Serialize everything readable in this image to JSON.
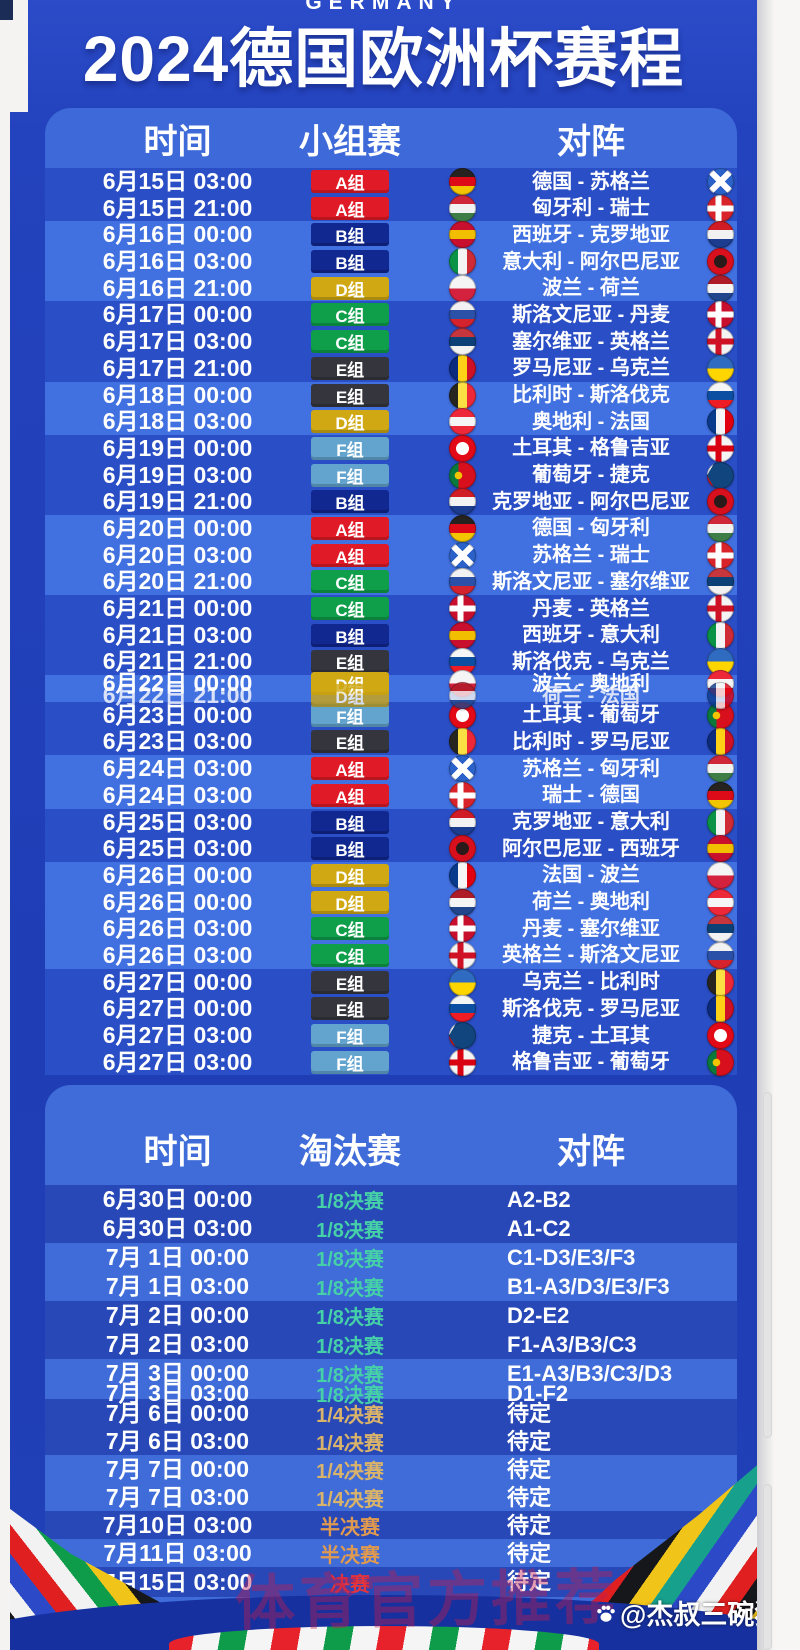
{
  "title": {
    "country": "GERMANY",
    "main": "2024德国欧洲杯赛程"
  },
  "colors": {
    "poster_blue": "#2342bd",
    "row_dark": "#2a4ec5",
    "row_light": "#4170e0",
    "header_band": "#3e6ad9",
    "ko_row_dark": "#2848b8",
    "ko_row_light": "#3f6cd9"
  },
  "group_stage": {
    "headers": {
      "time": "时间",
      "stage": "小组赛",
      "versus": "对阵"
    },
    "groups": {
      "A": {
        "label": "A组",
        "color": "#e11a27"
      },
      "B": {
        "label": "B组",
        "color": "#10288f"
      },
      "C": {
        "label": "C组",
        "color": "#0f9e49"
      },
      "D": {
        "label": "D组",
        "color": "#cfa813"
      },
      "E": {
        "label": "E组",
        "color": "#35353d"
      },
      "F": {
        "label": "F组",
        "color": "#63a4cf"
      }
    },
    "rows": [
      {
        "time": "6月15日 03:00",
        "group": "A",
        "home_flag": "de",
        "match": "德国 - 苏格兰",
        "away_flag": "sct",
        "shade": "a"
      },
      {
        "time": "6月15日 21:00",
        "group": "A",
        "home_flag": "hu",
        "match": "匈牙利 - 瑞士",
        "away_flag": "ch",
        "shade": "a"
      },
      {
        "time": "6月16日 00:00",
        "group": "B",
        "home_flag": "es",
        "match": "西班牙 - 克罗地亚",
        "away_flag": "hr",
        "shade": "b"
      },
      {
        "time": "6月16日 03:00",
        "group": "B",
        "home_flag": "it",
        "match": "意大利 - 阿尔巴尼亚",
        "away_flag": "al",
        "shade": "b"
      },
      {
        "time": "6月16日 21:00",
        "group": "D",
        "home_flag": "pl",
        "match": "波兰 - 荷兰",
        "away_flag": "nl",
        "shade": "b"
      },
      {
        "time": "6月17日 00:00",
        "group": "C",
        "home_flag": "si",
        "match": "斯洛文尼亚 - 丹麦",
        "away_flag": "dk",
        "shade": "a"
      },
      {
        "time": "6月17日 03:00",
        "group": "C",
        "home_flag": "rs",
        "match": "塞尔维亚 - 英格兰",
        "away_flag": "en",
        "shade": "a"
      },
      {
        "time": "6月17日 21:00",
        "group": "E",
        "home_flag": "ro",
        "match": "罗马尼亚 - 乌克兰",
        "away_flag": "ua",
        "shade": "a"
      },
      {
        "time": "6月18日 00:00",
        "group": "E",
        "home_flag": "be",
        "match": "比利时 - 斯洛伐克",
        "away_flag": "sk",
        "shade": "b"
      },
      {
        "time": "6月18日 03:00",
        "group": "D",
        "home_flag": "at",
        "match": "奥地利 - 法国",
        "away_flag": "fr",
        "shade": "b"
      },
      {
        "time": "6月19日 00:00",
        "group": "F",
        "home_flag": "tr",
        "match": "土耳其 - 格鲁吉亚",
        "away_flag": "ge",
        "shade": "a"
      },
      {
        "time": "6月19日 03:00",
        "group": "F",
        "home_flag": "pt",
        "match": "葡萄牙 - 捷克",
        "away_flag": "cz",
        "shade": "a"
      },
      {
        "time": "6月19日 21:00",
        "group": "B",
        "home_flag": "hr",
        "match": "克罗地亚 - 阿尔巴尼亚",
        "away_flag": "al",
        "shade": "a"
      },
      {
        "time": "6月20日 00:00",
        "group": "A",
        "home_flag": "de",
        "match": "德国 - 匈牙利",
        "away_flag": "hu",
        "shade": "b"
      },
      {
        "time": "6月20日 03:00",
        "group": "A",
        "home_flag": "sct",
        "match": "苏格兰 - 瑞士",
        "away_flag": "ch",
        "shade": "b"
      },
      {
        "time": "6月20日 21:00",
        "group": "C",
        "home_flag": "si",
        "match": "斯洛文尼亚 - 塞尔维亚",
        "away_flag": "rs",
        "shade": "b"
      },
      {
        "time": "6月21日 00:00",
        "group": "C",
        "home_flag": "dk",
        "match": "丹麦 - 英格兰",
        "away_flag": "en",
        "shade": "a"
      },
      {
        "time": "6月21日 03:00",
        "group": "B",
        "home_flag": "es",
        "match": "西班牙 - 意大利",
        "away_flag": "it",
        "shade": "a"
      },
      {
        "time": "6月21日 21:00",
        "group": "E",
        "home_flag": "sk",
        "match": "斯洛伐克 - 乌克兰",
        "away_flag": "ua",
        "shade": "a"
      },
      {
        "glitch": true,
        "shade": "b",
        "layers": [
          {
            "time": "6月22日 00:00",
            "group": "D",
            "home_flag": "pl",
            "match": "波兰 - 奥地利",
            "away_flag": "at"
          },
          {
            "time": "6月22日 21:00",
            "group": "D",
            "home_flag": "nl",
            "match": "荷兰 - 法国",
            "away_flag": "fr"
          }
        ]
      },
      {
        "time": "6月23日 00:00",
        "group": "F",
        "home_flag": "tr",
        "match": "土耳其 - 葡萄牙",
        "away_flag": "pt",
        "shade": "a"
      },
      {
        "time": "6月23日 03:00",
        "group": "E",
        "home_flag": "be",
        "match": "比利时 - 罗马尼亚",
        "away_flag": "ro",
        "shade": "a"
      },
      {
        "time": "6月24日 03:00",
        "group": "A",
        "home_flag": "sct",
        "match": "苏格兰 - 匈牙利",
        "away_flag": "hu",
        "shade": "b"
      },
      {
        "time": "6月24日 03:00",
        "group": "A",
        "home_flag": "ch",
        "match": "瑞士 - 德国",
        "away_flag": "de",
        "shade": "b"
      },
      {
        "time": "6月25日 03:00",
        "group": "B",
        "home_flag": "hr",
        "match": "克罗地亚 - 意大利",
        "away_flag": "it",
        "shade": "a"
      },
      {
        "time": "6月25日 03:00",
        "group": "B",
        "home_flag": "al",
        "match": "阿尔巴尼亚 - 西班牙",
        "away_flag": "es",
        "shade": "a"
      },
      {
        "time": "6月26日 00:00",
        "group": "D",
        "home_flag": "fr",
        "match": "法国 - 波兰",
        "away_flag": "pl",
        "shade": "b"
      },
      {
        "time": "6月26日 00:00",
        "group": "D",
        "home_flag": "nl",
        "match": "荷兰 - 奥地利",
        "away_flag": "at",
        "shade": "b"
      },
      {
        "time": "6月26日 03:00",
        "group": "C",
        "home_flag": "dk",
        "match": "丹麦 - 塞尔维亚",
        "away_flag": "rs",
        "shade": "b"
      },
      {
        "time": "6月26日 03:00",
        "group": "C",
        "home_flag": "en",
        "match": "英格兰 - 斯洛文尼亚",
        "away_flag": "si",
        "shade": "b"
      },
      {
        "time": "6月27日 00:00",
        "group": "E",
        "home_flag": "ua",
        "match": "乌克兰 - 比利时",
        "away_flag": "be",
        "shade": "a"
      },
      {
        "time": "6月27日 00:00",
        "group": "E",
        "home_flag": "sk",
        "match": "斯洛伐克 - 罗马尼亚",
        "away_flag": "ro",
        "shade": "a"
      },
      {
        "time": "6月27日 03:00",
        "group": "F",
        "home_flag": "cz",
        "match": "捷克 - 土耳其",
        "away_flag": "tr",
        "shade": "a"
      },
      {
        "time": "6月27日 03:00",
        "group": "F",
        "home_flag": "ge",
        "match": "格鲁吉亚 - 葡萄牙",
        "away_flag": "pt",
        "shade": "a"
      }
    ]
  },
  "knockout": {
    "headers": {
      "time": "时间",
      "stage": "淘汰赛",
      "versus": "对阵"
    },
    "stages": {
      "r16": {
        "label": "1/8决赛",
        "color": "#45d0a8"
      },
      "qf": {
        "label": "1/4决赛",
        "color": "#d9b36a"
      },
      "sf": {
        "label": "半决赛",
        "color": "#e09a50"
      },
      "f": {
        "label": "决赛",
        "color": "#e4343c"
      }
    },
    "rows": [
      {
        "time": "6月30日 00:00",
        "stage": "r16",
        "versus": "A2-B2",
        "shade": "a"
      },
      {
        "time": "6月30日 03:00",
        "stage": "r16",
        "versus": "A1-C2",
        "shade": "a"
      },
      {
        "time": "7月 1日 00:00",
        "stage": "r16",
        "versus": "C1-D3/E3/F3",
        "shade": "b"
      },
      {
        "time": "7月 1日 03:00",
        "stage": "r16",
        "versus": "B1-A3/D3/E3/F3",
        "shade": "b"
      },
      {
        "time": "7月 2日 00:00",
        "stage": "r16",
        "versus": "D2-E2",
        "shade": "a"
      },
      {
        "time": "7月 2日 03:00",
        "stage": "r16",
        "versus": "F1-A3/B3/C3",
        "shade": "a"
      },
      {
        "time": "7月 3日 00:00",
        "stage": "r16",
        "versus": "E1-A3/B3/C3/D3",
        "shade": "b"
      },
      {
        "time": "7月 3日 03:00",
        "stage": "r16",
        "versus": "D1-F2",
        "shade": "b"
      },
      {
        "time": "7月 6日 00:00",
        "stage": "qf",
        "versus": "待定",
        "shade": "a"
      },
      {
        "time": "7月 6日 03:00",
        "stage": "qf",
        "versus": "待定",
        "shade": "a"
      },
      {
        "time": "7月 7日 00:00",
        "stage": "qf",
        "versus": "待定",
        "shade": "b"
      },
      {
        "time": "7月 7日 03:00",
        "stage": "qf",
        "versus": "待定",
        "shade": "b"
      },
      {
        "time": "7月10日 03:00",
        "stage": "sf",
        "versus": "待定",
        "shade": "a"
      },
      {
        "time": "7月11日 03:00",
        "stage": "sf",
        "versus": "待定",
        "shade": "b"
      },
      {
        "time": "7月15日 03:00",
        "stage": "f",
        "versus": "待定",
        "shade": "a"
      }
    ]
  },
  "flags": {
    "de": {
      "type": "h3",
      "colors": [
        "#26221f",
        "#dd0b18",
        "#f2c500"
      ]
    },
    "sct": {
      "type": "saltire",
      "colors": [
        "#2b62c9",
        "#ffffff"
      ]
    },
    "hu": {
      "type": "h3",
      "colors": [
        "#cf2939",
        "#f2f2f2",
        "#3f7d46"
      ]
    },
    "ch": {
      "type": "cross",
      "colors": [
        "#d8232a",
        "#ffffff"
      ]
    },
    "es": {
      "type": "h3",
      "colors": [
        "#c8102e",
        "#f1bf00",
        "#c8102e"
      ]
    },
    "hr": {
      "type": "h3",
      "colors": [
        "#d01c24",
        "#f2f2f2",
        "#1b3c8f"
      ]
    },
    "it": {
      "type": "v3",
      "colors": [
        "#0a9246",
        "#f4f4f4",
        "#ce2b37"
      ]
    },
    "al": {
      "type": "dot",
      "colors": [
        "#d8101d",
        "#2a1a1a"
      ]
    },
    "pl": {
      "type": "h2",
      "colors": [
        "#f5f5f5",
        "#d4213d"
      ]
    },
    "nl": {
      "type": "h3",
      "colors": [
        "#ae1c28",
        "#f5f5f5",
        "#21468b"
      ]
    },
    "si": {
      "type": "h3",
      "colors": [
        "#f2f2f2",
        "#2a50a8",
        "#d5232e"
      ]
    },
    "dk": {
      "type": "cross",
      "colors": [
        "#c8102e",
        "#ffffff"
      ]
    },
    "rs": {
      "type": "h3",
      "colors": [
        "#c6363c",
        "#0c4076",
        "#f2f2f2"
      ]
    },
    "en": {
      "type": "cross",
      "colors": [
        "#f4f4f4",
        "#ce1124"
      ]
    },
    "ro": {
      "type": "v3",
      "colors": [
        "#0b2b7f",
        "#fcd116",
        "#ce1126"
      ]
    },
    "ua": {
      "type": "h2",
      "colors": [
        "#2f6bc0",
        "#ffd500"
      ]
    },
    "be": {
      "type": "v3",
      "colors": [
        "#27251f",
        "#fae042",
        "#ed2939"
      ]
    },
    "at": {
      "type": "h3",
      "colors": [
        "#ed2939",
        "#f5f5f5",
        "#ed2939"
      ]
    },
    "fr": {
      "type": "v3",
      "colors": [
        "#0a3a8c",
        "#f5f5f5",
        "#e1000f"
      ]
    },
    "tr": {
      "type": "dot",
      "colors": [
        "#e30a17",
        "#ffffff"
      ]
    },
    "ge": {
      "type": "cross",
      "colors": [
        "#f5f5f5",
        "#d90012"
      ]
    },
    "pt": {
      "type": "pt",
      "colors": [
        "#0a7a3c",
        "#d8101d",
        "#f2c500"
      ]
    },
    "cz": {
      "type": "cz",
      "colors": [
        "#ffffff",
        "#d7141a",
        "#11457e"
      ]
    },
    "sk": {
      "type": "h3",
      "colors": [
        "#f5f5f5",
        "#0b4ea2",
        "#ee1c25"
      ]
    }
  },
  "watermarks": {
    "diagonal": "体育官方推荐",
    "credit": "@杰叔三碗猪手面"
  }
}
